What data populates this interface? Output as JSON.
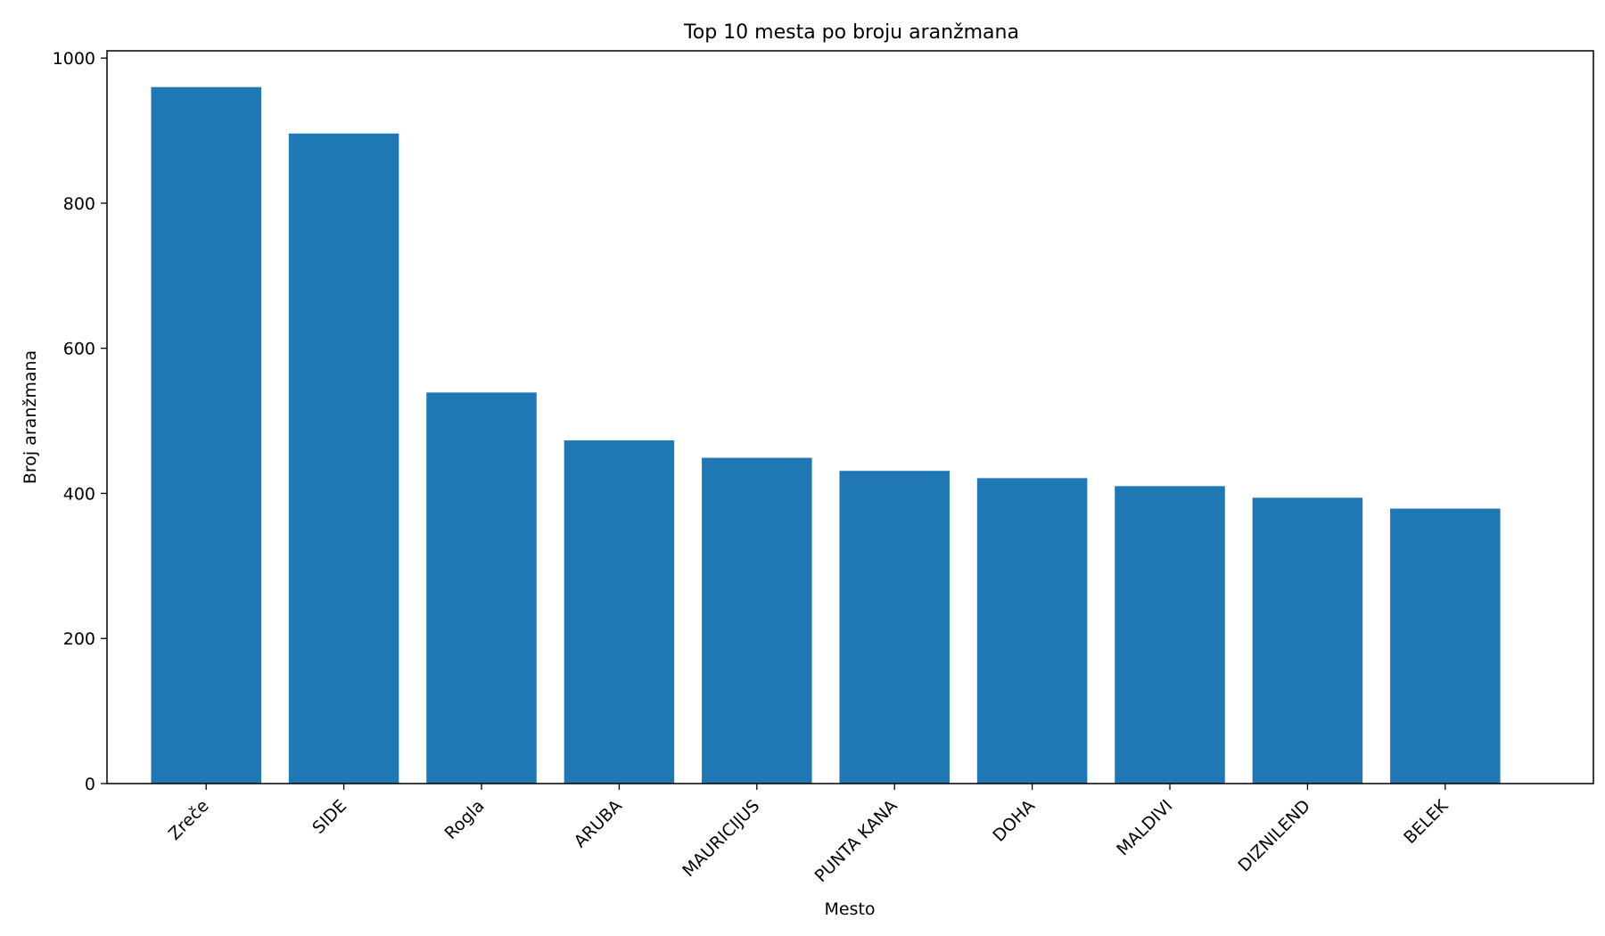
{
  "chart_data": {
    "type": "bar",
    "title": "Top 10 mesta po broju aranžmana",
    "xlabel": "Mesto",
    "ylabel": "Broj aranžmana",
    "categories": [
      "Zreče",
      "SIDE",
      "Rogla",
      "ARUBA",
      "MAURICIJUS",
      "PUNTA KANA",
      "DOHA",
      "MALDIVI",
      "DIZNILEND",
      "BELEK"
    ],
    "values": [
      960,
      896,
      539,
      473,
      449,
      431,
      421,
      410,
      394,
      379
    ],
    "ylim": [
      0,
      1010
    ],
    "yticks": [
      0,
      200,
      400,
      600,
      800,
      1000
    ],
    "ytick_labels": [
      "0",
      "200",
      "400",
      "600",
      "800",
      "1000"
    ],
    "bar_color": "#1f77b4",
    "grid": false,
    "legend": "none",
    "xtick_rotation": "45"
  }
}
